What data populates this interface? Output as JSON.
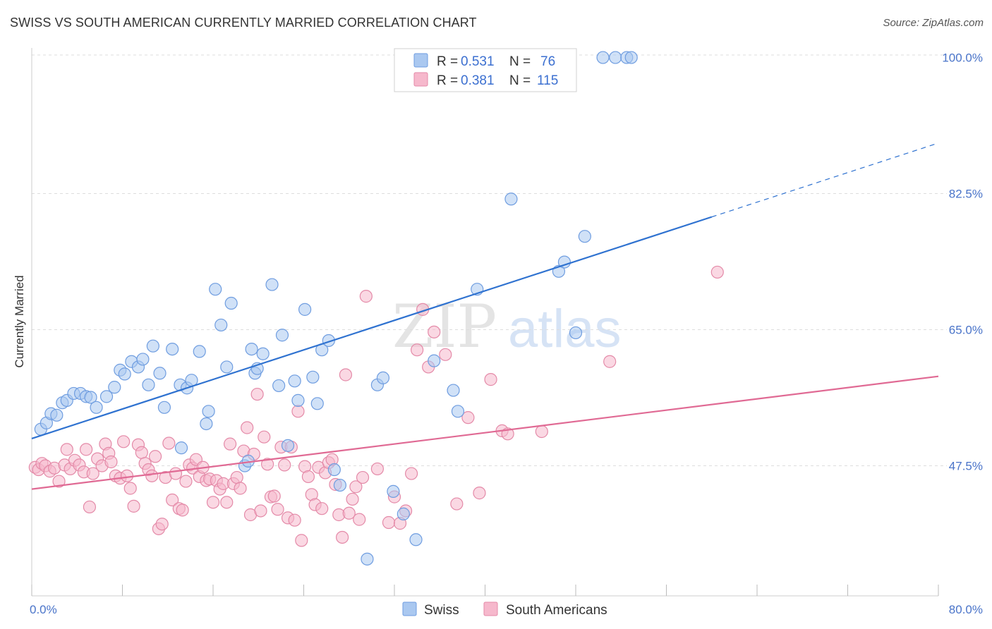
{
  "header": {
    "title": "SWISS VS SOUTH AMERICAN CURRENTLY MARRIED CORRELATION CHART",
    "source": "Source: ZipAtlas.com"
  },
  "watermark": {
    "part1": "ZIP",
    "part2": "atlas"
  },
  "legend": {
    "swiss": {
      "r_label": "R = ",
      "r_value": "0.531",
      "n_label": "N = ",
      "n_value": "76"
    },
    "south": {
      "r_label": "R = ",
      "r_value": "0.381",
      "n_label": "N = ",
      "n_value": "115"
    }
  },
  "bottom_legend": {
    "swiss": "Swiss",
    "south": "South Americans"
  },
  "colors": {
    "swiss_fill": "#aac8f0",
    "swiss_stroke": "#6f9de0",
    "swiss_line": "#2f72d0",
    "south_fill": "#f6b8cc",
    "south_stroke": "#e48aa8",
    "south_line": "#e06a94",
    "grid": "#dddddd",
    "tick_text": "#4a74c9"
  },
  "chart_data": {
    "type": "scatter",
    "title": "SWISS VS SOUTH AMERICAN CURRENTLY MARRIED CORRELATION CHART",
    "ylabel": "Currently Married",
    "xlabel": "",
    "xlim": [
      0,
      80
    ],
    "ylim": [
      31,
      102
    ],
    "x_tick_labels": [
      {
        "value": 0,
        "label": "0.0%"
      },
      {
        "value": 80,
        "label": "80.0%"
      }
    ],
    "y_ticks": [
      {
        "value": 47.5,
        "label": "47.5%"
      },
      {
        "value": 65.0,
        "label": "65.0%"
      },
      {
        "value": 82.5,
        "label": "82.5%"
      },
      {
        "value": 100.0,
        "label": "100.0%"
      }
    ],
    "x_minor_ticks": [
      0,
      8,
      16,
      24,
      32,
      40,
      48,
      56,
      64,
      72,
      80
    ],
    "grid": true,
    "legend_position": "top-center",
    "series": [
      {
        "name": "Swiss",
        "R": 0.531,
        "N": 76,
        "trend": {
          "x0": 0,
          "y0": 51.0,
          "x1": 80,
          "y1": 89.0,
          "solid_until_x": 60.0
        },
        "points": [
          [
            0.8,
            52.2
          ],
          [
            1.3,
            53.0
          ],
          [
            1.7,
            54.2
          ],
          [
            2.2,
            54.0
          ],
          [
            2.7,
            55.6
          ],
          [
            3.1,
            55.9
          ],
          [
            3.7,
            56.8
          ],
          [
            4.3,
            56.8
          ],
          [
            4.8,
            56.4
          ],
          [
            5.2,
            56.3
          ],
          [
            5.7,
            55.0
          ],
          [
            6.6,
            56.4
          ],
          [
            7.3,
            57.6
          ],
          [
            7.8,
            59.8
          ],
          [
            8.2,
            59.3
          ],
          [
            8.8,
            60.9
          ],
          [
            9.4,
            60.2
          ],
          [
            9.8,
            61.2
          ],
          [
            10.3,
            57.9
          ],
          [
            11.3,
            59.4
          ],
          [
            10.7,
            62.9
          ],
          [
            11.7,
            55.0
          ],
          [
            12.4,
            62.5
          ],
          [
            13.1,
            57.9
          ],
          [
            13.2,
            49.8
          ],
          [
            13.7,
            57.5
          ],
          [
            14.1,
            58.5
          ],
          [
            14.8,
            62.2
          ],
          [
            15.4,
            52.9
          ],
          [
            15.6,
            54.5
          ],
          [
            16.2,
            70.2
          ],
          [
            16.7,
            65.6
          ],
          [
            17.2,
            60.2
          ],
          [
            17.6,
            68.4
          ],
          [
            18.8,
            47.5
          ],
          [
            19.1,
            48.1
          ],
          [
            19.4,
            62.5
          ],
          [
            19.7,
            59.4
          ],
          [
            19.9,
            60.0
          ],
          [
            20.4,
            61.9
          ],
          [
            21.2,
            70.8
          ],
          [
            21.8,
            57.8
          ],
          [
            22.1,
            64.3
          ],
          [
            22.6,
            50.1
          ],
          [
            23.2,
            58.4
          ],
          [
            23.5,
            55.9
          ],
          [
            24.1,
            67.6
          ],
          [
            24.8,
            58.9
          ],
          [
            25.2,
            55.5
          ],
          [
            25.6,
            62.4
          ],
          [
            26.2,
            63.6
          ],
          [
            26.7,
            47.0
          ],
          [
            27.2,
            45.0
          ],
          [
            29.6,
            35.5
          ],
          [
            30.5,
            57.9
          ],
          [
            31.0,
            58.8
          ],
          [
            31.9,
            44.2
          ],
          [
            32.8,
            41.3
          ],
          [
            33.9,
            38.0
          ],
          [
            35.5,
            61.0
          ],
          [
            37.2,
            57.2
          ],
          [
            37.6,
            54.5
          ],
          [
            39.3,
            70.2
          ],
          [
            42.3,
            81.8
          ],
          [
            43.1,
            100.0
          ],
          [
            44.3,
            97.6
          ],
          [
            46.5,
            72.5
          ],
          [
            47.0,
            73.7
          ],
          [
            48.0,
            64.6
          ],
          [
            48.8,
            77.0
          ],
          [
            50.4,
            100.0
          ],
          [
            51.5,
            100.0
          ],
          [
            52.5,
            100.0
          ],
          [
            52.9,
            100.0
          ]
        ]
      },
      {
        "name": "South Americans",
        "R": 0.381,
        "N": 115,
        "trend": {
          "x0": 0,
          "y0": 44.5,
          "x1": 80,
          "y1": 59.0
        },
        "points": [
          [
            0.3,
            47.3
          ],
          [
            0.6,
            47.0
          ],
          [
            0.9,
            47.8
          ],
          [
            1.2,
            47.5
          ],
          [
            1.6,
            46.8
          ],
          [
            2.0,
            47.2
          ],
          [
            2.4,
            45.5
          ],
          [
            2.9,
            47.6
          ],
          [
            3.1,
            49.6
          ],
          [
            3.4,
            47.1
          ],
          [
            3.8,
            48.2
          ],
          [
            4.2,
            47.6
          ],
          [
            4.6,
            46.7
          ],
          [
            4.8,
            49.6
          ],
          [
            5.1,
            42.2
          ],
          [
            5.4,
            46.5
          ],
          [
            5.8,
            48.4
          ],
          [
            6.2,
            47.5
          ],
          [
            6.5,
            50.3
          ],
          [
            6.8,
            49.1
          ],
          [
            7.0,
            48.0
          ],
          [
            7.4,
            46.2
          ],
          [
            7.8,
            45.9
          ],
          [
            8.1,
            50.6
          ],
          [
            8.4,
            46.2
          ],
          [
            8.7,
            44.6
          ],
          [
            9.0,
            42.3
          ],
          [
            9.4,
            50.2
          ],
          [
            9.7,
            49.2
          ],
          [
            10.0,
            47.8
          ],
          [
            10.3,
            47.0
          ],
          [
            10.6,
            46.2
          ],
          [
            10.9,
            48.7
          ],
          [
            11.2,
            39.4
          ],
          [
            11.5,
            40.0
          ],
          [
            11.8,
            46.0
          ],
          [
            12.1,
            50.4
          ],
          [
            12.4,
            43.1
          ],
          [
            12.7,
            46.5
          ],
          [
            13.0,
            42.0
          ],
          [
            13.3,
            41.8
          ],
          [
            13.6,
            45.5
          ],
          [
            13.9,
            47.6
          ],
          [
            14.2,
            47.2
          ],
          [
            14.5,
            48.3
          ],
          [
            14.8,
            46.1
          ],
          [
            15.1,
            47.3
          ],
          [
            15.4,
            45.6
          ],
          [
            15.7,
            45.8
          ],
          [
            16.0,
            42.8
          ],
          [
            16.3,
            45.6
          ],
          [
            16.6,
            44.5
          ],
          [
            16.9,
            45.2
          ],
          [
            17.2,
            42.8
          ],
          [
            17.5,
            50.3
          ],
          [
            17.8,
            45.2
          ],
          [
            18.1,
            46.0
          ],
          [
            18.4,
            44.6
          ],
          [
            18.7,
            49.4
          ],
          [
            19.0,
            52.4
          ],
          [
            19.3,
            41.2
          ],
          [
            19.6,
            49.0
          ],
          [
            19.9,
            56.7
          ],
          [
            20.2,
            41.7
          ],
          [
            20.5,
            51.2
          ],
          [
            20.8,
            47.7
          ],
          [
            21.1,
            43.5
          ],
          [
            21.4,
            43.6
          ],
          [
            21.7,
            41.9
          ],
          [
            22.0,
            49.9
          ],
          [
            22.3,
            47.6
          ],
          [
            22.6,
            40.8
          ],
          [
            22.9,
            49.9
          ],
          [
            23.2,
            40.5
          ],
          [
            23.5,
            54.5
          ],
          [
            23.8,
            37.9
          ],
          [
            24.1,
            47.4
          ],
          [
            24.4,
            46.1
          ],
          [
            24.7,
            43.8
          ],
          [
            25.0,
            42.5
          ],
          [
            25.3,
            47.3
          ],
          [
            25.6,
            42.0
          ],
          [
            25.9,
            46.6
          ],
          [
            26.2,
            47.9
          ],
          [
            26.5,
            48.3
          ],
          [
            26.8,
            45.1
          ],
          [
            27.1,
            41.2
          ],
          [
            27.4,
            38.3
          ],
          [
            27.7,
            59.2
          ],
          [
            28.0,
            41.4
          ],
          [
            28.3,
            43.2
          ],
          [
            28.6,
            44.8
          ],
          [
            28.9,
            40.6
          ],
          [
            29.2,
            46.0
          ],
          [
            29.5,
            69.3
          ],
          [
            30.5,
            47.1
          ],
          [
            31.5,
            40.2
          ],
          [
            32.0,
            43.5
          ],
          [
            32.5,
            40.1
          ],
          [
            33.0,
            41.7
          ],
          [
            33.5,
            46.5
          ],
          [
            34.0,
            62.4
          ],
          [
            34.5,
            67.6
          ],
          [
            35.0,
            60.2
          ],
          [
            35.5,
            64.7
          ],
          [
            36.5,
            61.8
          ],
          [
            37.5,
            42.6
          ],
          [
            38.5,
            53.7
          ],
          [
            39.5,
            44.0
          ],
          [
            40.5,
            58.6
          ],
          [
            41.5,
            52.0
          ],
          [
            42.0,
            51.6
          ],
          [
            45.0,
            51.9
          ],
          [
            51.0,
            60.9
          ],
          [
            60.5,
            72.4
          ]
        ]
      }
    ]
  }
}
